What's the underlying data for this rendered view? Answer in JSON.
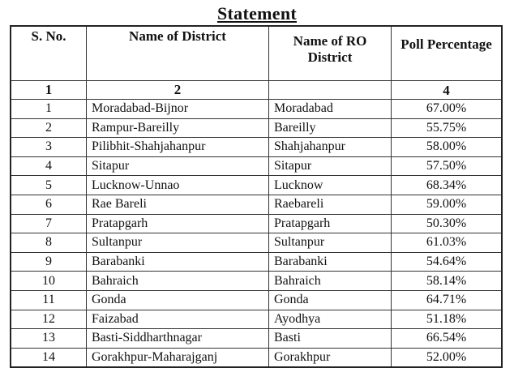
{
  "title": "Statement",
  "columns": [
    "S. No.",
    "Name of District",
    "Name of RO District",
    "Poll Percentage"
  ],
  "column_numbers": [
    "1",
    "2",
    "",
    "4"
  ],
  "rows": [
    [
      "1",
      "Moradabad-Bijnor",
      "Moradabad",
      "67.00%"
    ],
    [
      "2",
      "Rampur-Bareilly",
      "Bareilly",
      "55.75%"
    ],
    [
      "3",
      "Pilibhit-Shahjahanpur",
      "Shahjahanpur",
      "58.00%"
    ],
    [
      "4",
      "Sitapur",
      "Sitapur",
      "57.50%"
    ],
    [
      "5",
      "Lucknow-Unnao",
      "Lucknow",
      "68.34%"
    ],
    [
      "6",
      "Rae Bareli",
      "Raebareli",
      "59.00%"
    ],
    [
      "7",
      "Pratapgarh",
      "Pratapgarh",
      "50.30%"
    ],
    [
      "8",
      "Sultanpur",
      "Sultanpur",
      "61.03%"
    ],
    [
      "9",
      "Barabanki",
      "Barabanki",
      "54.64%"
    ],
    [
      "10",
      "Bahraich",
      "Bahraich",
      "58.14%"
    ],
    [
      "11",
      "Gonda",
      "Gonda",
      "64.71%"
    ],
    [
      "12",
      "Faizabad",
      "Ayodhya",
      "51.18%"
    ],
    [
      "13",
      "Basti-Siddharthnagar",
      "Basti",
      "66.54%"
    ],
    [
      "14",
      "Gorakhpur-Maharajganj",
      "Gorakhpur",
      "52.00%"
    ]
  ]
}
